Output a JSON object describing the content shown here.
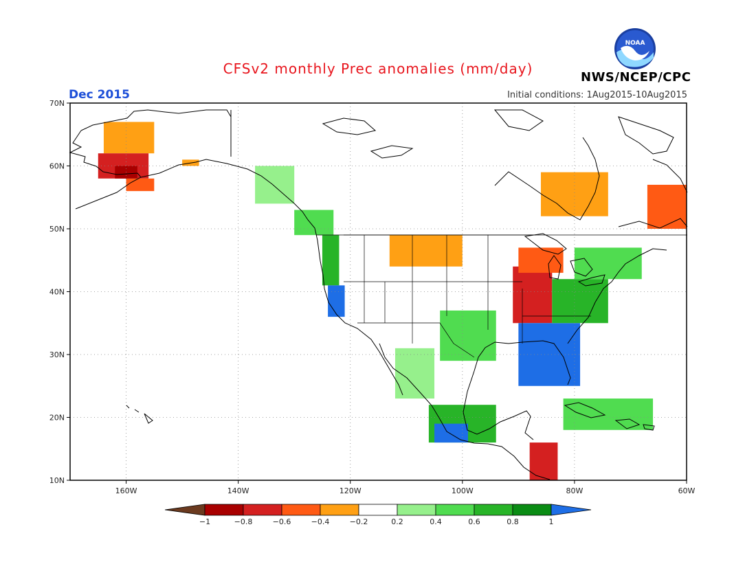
{
  "title": "CFSv2 monthly Prec anomalies (mm/day)",
  "valid_month": "Dec 2015",
  "initial_conditions": "Initial conditions: 1Aug2015-10Aug2015",
  "organization": "NWS/NCEP/CPC",
  "logo_text": "NOAA",
  "map": {
    "lon_range": [
      -170,
      -60
    ],
    "lat_range": [
      10,
      70
    ],
    "lon_ticks": [
      {
        "value": -160,
        "label": "160W"
      },
      {
        "value": -140,
        "label": "140W"
      },
      {
        "value": -120,
        "label": "120W"
      },
      {
        "value": -100,
        "label": "100W"
      },
      {
        "value": -80,
        "label": "80W"
      },
      {
        "value": -60,
        "label": "60W"
      }
    ],
    "lat_ticks": [
      {
        "value": 10,
        "label": "10N"
      },
      {
        "value": 20,
        "label": "20N"
      },
      {
        "value": 30,
        "label": "30N"
      },
      {
        "value": 40,
        "label": "40N"
      },
      {
        "value": 50,
        "label": "50N"
      },
      {
        "value": 60,
        "label": "60N"
      },
      {
        "value": 70,
        "label": "70N"
      }
    ],
    "grid": "dotted"
  },
  "colorbar": {
    "labels": [
      "-1",
      "-0.8",
      "-0.6",
      "-0.4",
      "-0.2",
      "0.2",
      "0.4",
      "0.6",
      "0.8",
      "1"
    ],
    "colors": [
      "#6b3a1f",
      "#a80000",
      "#d42020",
      "#ff5a14",
      "#ffa014",
      "#ffffff",
      "#96f08c",
      "#50dc50",
      "#28b428",
      "#0a8c14",
      "#1e6ee6"
    ]
  },
  "chart_data": {
    "type": "heatmap",
    "title": "CFSv2 monthly Prec anomalies (mm/day)",
    "units": "mm/day",
    "legend": "bottom",
    "regions": [
      {
        "name": "Alaska interior",
        "lon": [
          -164,
          -155
        ],
        "lat": [
          62,
          67
        ],
        "value": -0.3
      },
      {
        "name": "SW Alaska",
        "lon": [
          -165,
          -156
        ],
        "lat": [
          58,
          62
        ],
        "value": -0.7
      },
      {
        "name": "Alaska peninsula",
        "lon": [
          -160,
          -155
        ],
        "lat": [
          56,
          58
        ],
        "value": -0.5
      },
      {
        "name": "SW Alaska core",
        "lon": [
          -162,
          -158
        ],
        "lat": [
          58,
          60
        ],
        "value": -0.9
      },
      {
        "name": "Alaska gulf coast",
        "lon": [
          -150,
          -147
        ],
        "lat": [
          60,
          61
        ],
        "value": -0.3
      },
      {
        "name": "SE Alaska panhandle",
        "lon": [
          -137,
          -130
        ],
        "lat": [
          54,
          60
        ],
        "value": 0.4
      },
      {
        "name": "BC coast",
        "lon": [
          -130,
          -123
        ],
        "lat": [
          49,
          53
        ],
        "value": 0.6
      },
      {
        "name": "Pacific NW coast",
        "lon": [
          -125,
          -122
        ],
        "lat": [
          41,
          49
        ],
        "value": 0.7
      },
      {
        "name": "N California coast",
        "lon": [
          -124,
          -121
        ],
        "lat": [
          36,
          41
        ],
        "value": 1.0
      },
      {
        "name": "Montana / Dakotas",
        "lon": [
          -113,
          -100
        ],
        "lat": [
          44,
          49
        ],
        "value": -0.3
      },
      {
        "name": "Texas / Oklahoma",
        "lon": [
          -104,
          -94
        ],
        "lat": [
          29,
          37
        ],
        "value": 0.6
      },
      {
        "name": "NW Mexico",
        "lon": [
          -112,
          -105
        ],
        "lat": [
          23,
          31
        ],
        "value": 0.4
      },
      {
        "name": "S Mexico",
        "lon": [
          -106,
          -94
        ],
        "lat": [
          16,
          22
        ],
        "value": 0.8
      },
      {
        "name": "Mexico Pacific coast",
        "lon": [
          -105,
          -99
        ],
        "lat": [
          16,
          19
        ],
        "value": 1.0
      },
      {
        "name": "Ohio Valley",
        "lon": [
          -91,
          -84
        ],
        "lat": [
          35,
          44
        ],
        "value": -0.6
      },
      {
        "name": "Great Lakes",
        "lon": [
          -90,
          -82
        ],
        "lat": [
          43,
          47
        ],
        "value": -0.4
      },
      {
        "name": "Southeast US",
        "lon": [
          -90,
          -79
        ],
        "lat": [
          25,
          35
        ],
        "value": 1.0
      },
      {
        "name": "Mid-Atlantic",
        "lon": [
          -84,
          -74
        ],
        "lat": [
          35,
          42
        ],
        "value": 0.8
      },
      {
        "name": "Northeast / New England",
        "lon": [
          -80,
          -68
        ],
        "lat": [
          42,
          47
        ],
        "value": 0.5
      },
      {
        "name": "Hudson Bay east",
        "lon": [
          -86,
          -74
        ],
        "lat": [
          52,
          59
        ],
        "value": -0.3
      },
      {
        "name": "Labrador",
        "lon": [
          -67,
          -60
        ],
        "lat": [
          50,
          57
        ],
        "value": -0.4
      },
      {
        "name": "Central America",
        "lon": [
          -88,
          -83
        ],
        "lat": [
          10,
          16
        ],
        "value": -0.6
      },
      {
        "name": "Caribbean (Cuba/Hispaniola)",
        "lon": [
          -82,
          -66
        ],
        "lat": [
          18,
          23
        ],
        "value": 0.6
      }
    ]
  }
}
